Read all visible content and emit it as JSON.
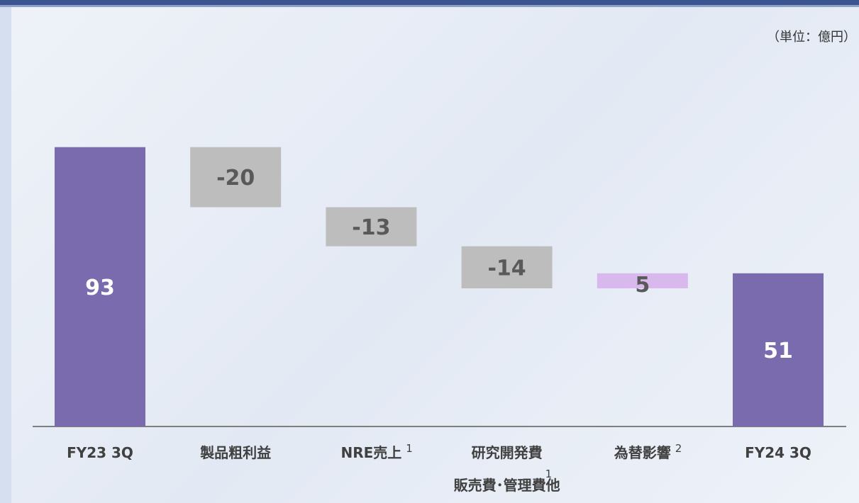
{
  "unit_label": "（単位：億円）",
  "colors": {
    "total": "#7a6aae",
    "decrease": "#bdbdbd",
    "increase": "#d9b8ee",
    "total_label": "#ffffff",
    "delta_label": "#595959",
    "category_label": "#404040",
    "axis": "#7f7f7f"
  },
  "chart_data": {
    "type": "waterfall",
    "unit": "（単位：億円）",
    "ylim": [
      0,
      93
    ],
    "grid": false,
    "legend": "none",
    "steps": [
      {
        "category": "FY23 3Q",
        "note": "",
        "value": 93,
        "label": "93",
        "kind": "total"
      },
      {
        "category": "製品粗利益",
        "note": "",
        "value": -20,
        "label": "-20",
        "kind": "decrease"
      },
      {
        "category": "NRE売上",
        "note": "1",
        "value": -13,
        "label": "-13",
        "kind": "decrease"
      },
      {
        "category": "研究開発費",
        "category_line2": "販売費･管理費他",
        "note": "1",
        "value": -14,
        "label": "-14",
        "kind": "decrease"
      },
      {
        "category": "為替影響",
        "note": "2",
        "value": 5,
        "label": "5",
        "kind": "increase"
      },
      {
        "category": "FY24 3Q",
        "note": "",
        "value": 51,
        "label": "51",
        "kind": "total"
      }
    ]
  }
}
